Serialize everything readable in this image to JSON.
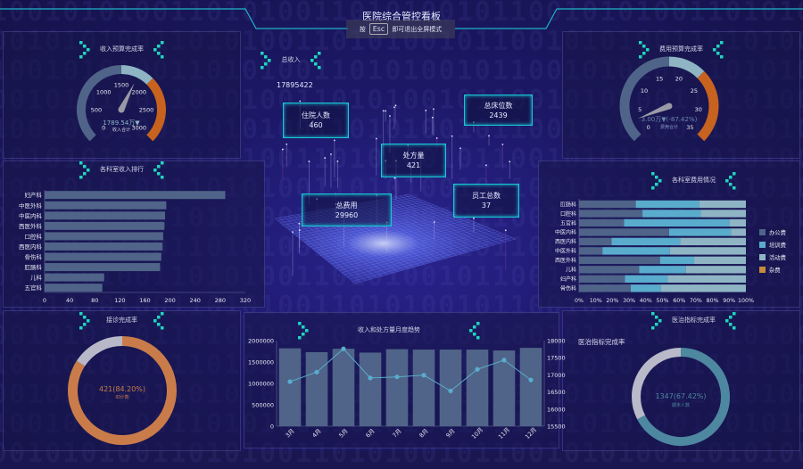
{
  "header": {
    "title": "医院综合管控看板",
    "hint_prefix": "按",
    "hint_key": "Esc",
    "hint_suffix": "即可退出全屏模式"
  },
  "background_pattern": "10010101001101010011010100101",
  "colors": {
    "accent": "#1fd6c0",
    "slate": "#4f6488",
    "light_blue": "#8fb5c4",
    "orange": "#c8621f",
    "cyan": "#5aaccc",
    "card_border": "#19c6d6"
  },
  "panels": {
    "income_gauge": {
      "title": "收入预算完成率",
      "value_text": "1789.54万▼",
      "sub_label": "收入合计"
    },
    "expense_gauge": {
      "title": "费用预算完成率",
      "value_text": "3.00万▼(-87.42%)",
      "sub_label": "费用合计"
    },
    "dept_income": {
      "title": "各科室收入排行"
    },
    "dept_expense": {
      "title": "各科室费用情况"
    },
    "visit_rate": {
      "title": "接诊完成率",
      "value_text": "421(84.20%)",
      "sub_label": "ID计数"
    },
    "monthly_trend": {
      "title": "收入和处方量月度趋势"
    },
    "treatment_rate": {
      "title": "医治指标完成率",
      "side_label": "医治指标完成率",
      "value_text": "1347(67.42%)",
      "sub_label": "期末人数"
    }
  },
  "center": {
    "total_income_label": "总收入",
    "total_income_value": "17895422",
    "cards": [
      {
        "label": "住院人数",
        "value": "460"
      },
      {
        "label": "总床位数",
        "value": "2439"
      },
      {
        "label": "处方量",
        "value": "421"
      },
      {
        "label": "总费用",
        "value": "29960"
      },
      {
        "label": "员工总数",
        "value": "37"
      }
    ]
  },
  "chart_data": [
    {
      "id": "income_gauge",
      "type": "gauge",
      "min": 0,
      "max": 3000,
      "ticks": [
        0,
        500,
        1000,
        1500,
        2000,
        2500,
        3000
      ],
      "value": 1789.54,
      "bands": [
        {
          "to": 0.5,
          "color": "#4f6488"
        },
        {
          "to": 0.667,
          "color": "#8fb5c4"
        },
        {
          "to": 1,
          "color": "#c8621f"
        }
      ]
    },
    {
      "id": "expense_gauge",
      "type": "gauge",
      "min": 0,
      "max": 35,
      "ticks": [
        0,
        5,
        10,
        15,
        20,
        25,
        30,
        35
      ],
      "value": 3.0,
      "bands": [
        {
          "to": 0.5,
          "color": "#4f6488"
        },
        {
          "to": 0.667,
          "color": "#8fb5c4"
        },
        {
          "to": 1,
          "color": "#c8621f"
        }
      ]
    },
    {
      "id": "dept_income",
      "type": "bar",
      "orientation": "horizontal",
      "categories": [
        "妇产科",
        "中医外科",
        "中医内科",
        "西医外科",
        "口腔科",
        "西医内科",
        "骨伤科",
        "肛肠科",
        "儿科",
        "五官科"
      ],
      "values": [
        288,
        194,
        192,
        191,
        189,
        188,
        186,
        184,
        95,
        92
      ],
      "xlim": [
        0,
        320
      ],
      "xticks": [
        0,
        40,
        80,
        120,
        160,
        200,
        240,
        280,
        320
      ],
      "color": "#4f6488"
    },
    {
      "id": "dept_expense",
      "type": "bar",
      "orientation": "horizontal",
      "stacked": true,
      "categories": [
        "肛肠科",
        "口腔科",
        "五官科",
        "中医内科",
        "西医内科",
        "中医外科",
        "西医外科",
        "儿科",
        "妇产科",
        "骨伤科"
      ],
      "series": [
        {
          "name": "办公费",
          "color": "#4f6488",
          "values": [
            34,
            38,
            27,
            54,
            19.5,
            14,
            48.5,
            36,
            27.5,
            31
          ]
        },
        {
          "name": "培训费",
          "color": "#5aaccc",
          "values": [
            38,
            35,
            63,
            37,
            41,
            40.5,
            20.5,
            28,
            25.5,
            18
          ]
        },
        {
          "name": "活动费",
          "color": "#8fb5c4",
          "values": [
            28,
            27,
            10,
            9,
            39.5,
            45.5,
            31,
            36,
            47,
            51
          ]
        },
        {
          "name": "杂费",
          "color": "#c98a3c",
          "values": [
            0,
            0,
            0,
            0,
            0,
            0,
            0,
            0,
            0,
            0
          ]
        }
      ],
      "xticks": [
        "0%",
        "10%",
        "20%",
        "30%",
        "40%",
        "50%",
        "60%",
        "70%",
        "80%",
        "90%",
        "100%"
      ],
      "legend": "right"
    },
    {
      "id": "visit_rate",
      "type": "pie",
      "donut": true,
      "values": [
        84.2,
        15.8
      ],
      "colors": [
        "#c97c4a",
        "#b8b8c8"
      ]
    },
    {
      "id": "monthly_trend",
      "type": "bar+line",
      "categories": [
        "3月",
        "4月",
        "5月",
        "6月",
        "7月",
        "8月",
        "9月",
        "10月",
        "11月",
        "12月"
      ],
      "series": [
        {
          "type": "bar",
          "axis": "left",
          "color": "#4f6488",
          "values": [
            1820000,
            1730000,
            1810000,
            1720000,
            1800000,
            1790000,
            1790000,
            1790000,
            1770000,
            1830000
          ]
        },
        {
          "type": "line",
          "axis": "right",
          "color": "#5aaccc",
          "values": [
            16800,
            17080,
            17760,
            16910,
            16940,
            16990,
            16530,
            17160,
            17430,
            16850
          ]
        }
      ],
      "ylim_left": [
        0,
        2000000
      ],
      "yticks_left": [
        "0",
        "500000",
        "1000000",
        "1500000",
        "2000000"
      ],
      "ylim_right": [
        15500,
        18000
      ],
      "yticks_right": [
        "15500",
        "16000",
        "16500",
        "17000",
        "17500",
        "18000"
      ]
    },
    {
      "id": "treatment_rate",
      "type": "pie",
      "donut": true,
      "values": [
        67.42,
        32.58
      ],
      "colors": [
        "#4e87a0",
        "#b9b9c9"
      ]
    }
  ]
}
